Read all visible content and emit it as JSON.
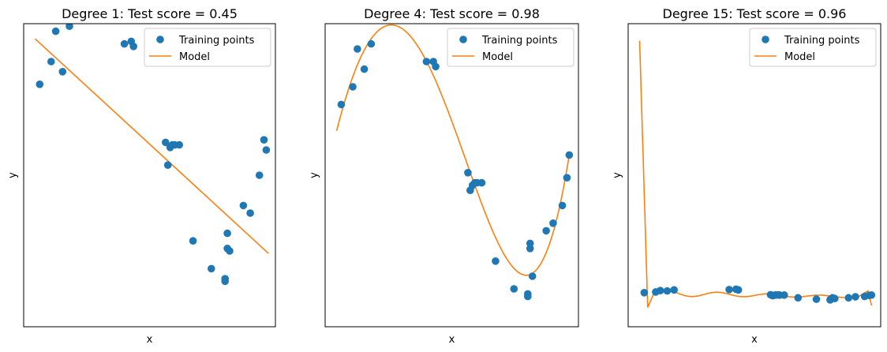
{
  "colors": {
    "points": "#1f77b4",
    "model": "#ff7f0e",
    "frame": "#000000",
    "legend_border": "#cccccc"
  },
  "chart_data": [
    {
      "type": "scatter",
      "title": "Degree 1: Test score = 0.45",
      "xlabel": "x",
      "ylabel": "y",
      "xticks": "hidden",
      "yticks": "hidden",
      "legend": {
        "placement": "top-right",
        "entries": [
          "Training points",
          "Model"
        ]
      },
      "xlim": [
        -0.05,
        1.05
      ],
      "ylim": [
        -0.15,
        1.05
      ],
      "series": [
        {
          "name": "Training points",
          "kind": "scatter",
          "x": [
            0.02,
            0.07,
            0.09,
            0.12,
            0.15,
            0.39,
            0.42,
            0.43,
            0.57,
            0.58,
            0.59,
            0.6,
            0.61,
            0.63,
            0.69,
            0.77,
            0.83,
            0.83,
            0.84,
            0.84,
            0.85,
            0.91,
            0.94,
            0.98,
            1.0,
            1.01
          ],
          "y": [
            0.81,
            0.9,
            1.02,
            0.86,
            1.04,
            0.97,
            0.98,
            0.96,
            0.58,
            0.49,
            0.56,
            0.57,
            0.57,
            0.57,
            0.19,
            0.08,
            0.03,
            0.04,
            0.22,
            0.16,
            0.15,
            0.33,
            0.3,
            0.45,
            0.59,
            0.55
          ]
        },
        {
          "name": "Model",
          "kind": "line",
          "x": [
            0.0,
            1.02
          ],
          "y": [
            0.99,
            0.14
          ]
        }
      ]
    },
    {
      "type": "scatter",
      "title": "Degree 4: Test score = 0.98",
      "xlabel": "x",
      "ylabel": "y",
      "xticks": "hidden",
      "yticks": "hidden",
      "legend": {
        "placement": "top-right",
        "entries": [
          "Training points",
          "Model"
        ]
      },
      "xlim": [
        -0.05,
        1.05
      ],
      "ylim": [
        -0.15,
        1.05
      ],
      "series": [
        {
          "name": "Training points",
          "kind": "scatter",
          "x": [
            0.02,
            0.07,
            0.09,
            0.12,
            0.15,
            0.39,
            0.42,
            0.43,
            0.57,
            0.58,
            0.59,
            0.6,
            0.61,
            0.63,
            0.69,
            0.77,
            0.83,
            0.83,
            0.84,
            0.84,
            0.85,
            0.91,
            0.94,
            0.98,
            1.0,
            1.01
          ],
          "y": [
            0.73,
            0.8,
            0.95,
            0.87,
            0.97,
            0.9,
            0.9,
            0.88,
            0.46,
            0.39,
            0.41,
            0.42,
            0.42,
            0.42,
            0.11,
            0.0,
            -0.03,
            -0.02,
            0.18,
            0.16,
            0.05,
            0.23,
            0.26,
            0.33,
            0.44,
            0.53
          ]
        },
        {
          "name": "Model",
          "kind": "line",
          "polyfit": "degree 4"
        }
      ]
    },
    {
      "type": "scatter",
      "title": "Degree 15: Test score = 0.96",
      "xlabel": "x",
      "ylabel": "y",
      "xticks": "hidden",
      "yticks": "hidden",
      "legend": {
        "placement": "top-right",
        "entries": [
          "Training points",
          "Model"
        ]
      },
      "xlim": [
        -0.05,
        1.05
      ],
      "ylim": [
        -4,
        40
      ],
      "series": [
        {
          "name": "Training points",
          "kind": "scatter",
          "x": [
            0.02,
            0.07,
            0.09,
            0.12,
            0.15,
            0.39,
            0.42,
            0.43,
            0.57,
            0.58,
            0.59,
            0.6,
            0.61,
            0.63,
            0.69,
            0.77,
            0.83,
            0.83,
            0.84,
            0.84,
            0.85,
            0.91,
            0.94,
            0.98,
            1.0,
            1.01
          ],
          "y": [
            0.95,
            1.05,
            1.25,
            1.2,
            1.35,
            1.4,
            1.45,
            1.35,
            0.65,
            0.5,
            0.6,
            0.62,
            0.6,
            0.6,
            0.2,
            0.0,
            -0.1,
            -0.05,
            0.2,
            0.15,
            0.1,
            0.2,
            0.35,
            0.4,
            0.55,
            0.6
          ]
        },
        {
          "name": "Model",
          "kind": "line",
          "overfit": "degree 15"
        }
      ]
    }
  ]
}
